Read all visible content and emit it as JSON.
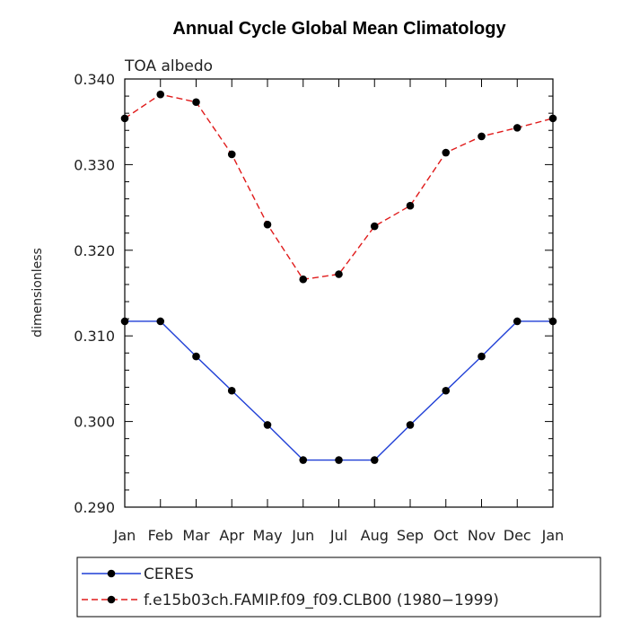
{
  "chart_data": {
    "type": "line",
    "title": "Annual Cycle Global Mean Climatology",
    "subtitle": "TOA albedo",
    "xlabel": "",
    "ylabel": "dimensionless",
    "categories": [
      "Jan",
      "Feb",
      "Mar",
      "Apr",
      "May",
      "Jun",
      "Jul",
      "Aug",
      "Sep",
      "Oct",
      "Nov",
      "Dec",
      "Jan"
    ],
    "ylim": [
      0.29,
      0.34
    ],
    "yticks": [
      "0.290",
      "0.300",
      "0.310",
      "0.320",
      "0.330",
      "0.340"
    ],
    "series": [
      {
        "name": "CERES",
        "color": "#1f3fd6",
        "dash": "solid",
        "values": [
          0.3117,
          0.3117,
          0.3076,
          0.3036,
          0.2996,
          0.2955,
          0.2955,
          0.2955,
          0.2996,
          0.3036,
          0.3076,
          0.3117,
          0.3117
        ]
      },
      {
        "name": "f.e15b03ch.FAMIP.f09_f09.CLB00 (1980−1999)",
        "color": "#e01b1b",
        "dash": "dashed",
        "values": [
          0.3354,
          0.3382,
          0.3373,
          0.3312,
          0.323,
          0.3166,
          0.3172,
          0.3228,
          0.3252,
          0.3314,
          0.3333,
          0.3343,
          0.3354
        ]
      }
    ],
    "legend_position": "bottom-left",
    "grid": false
  }
}
